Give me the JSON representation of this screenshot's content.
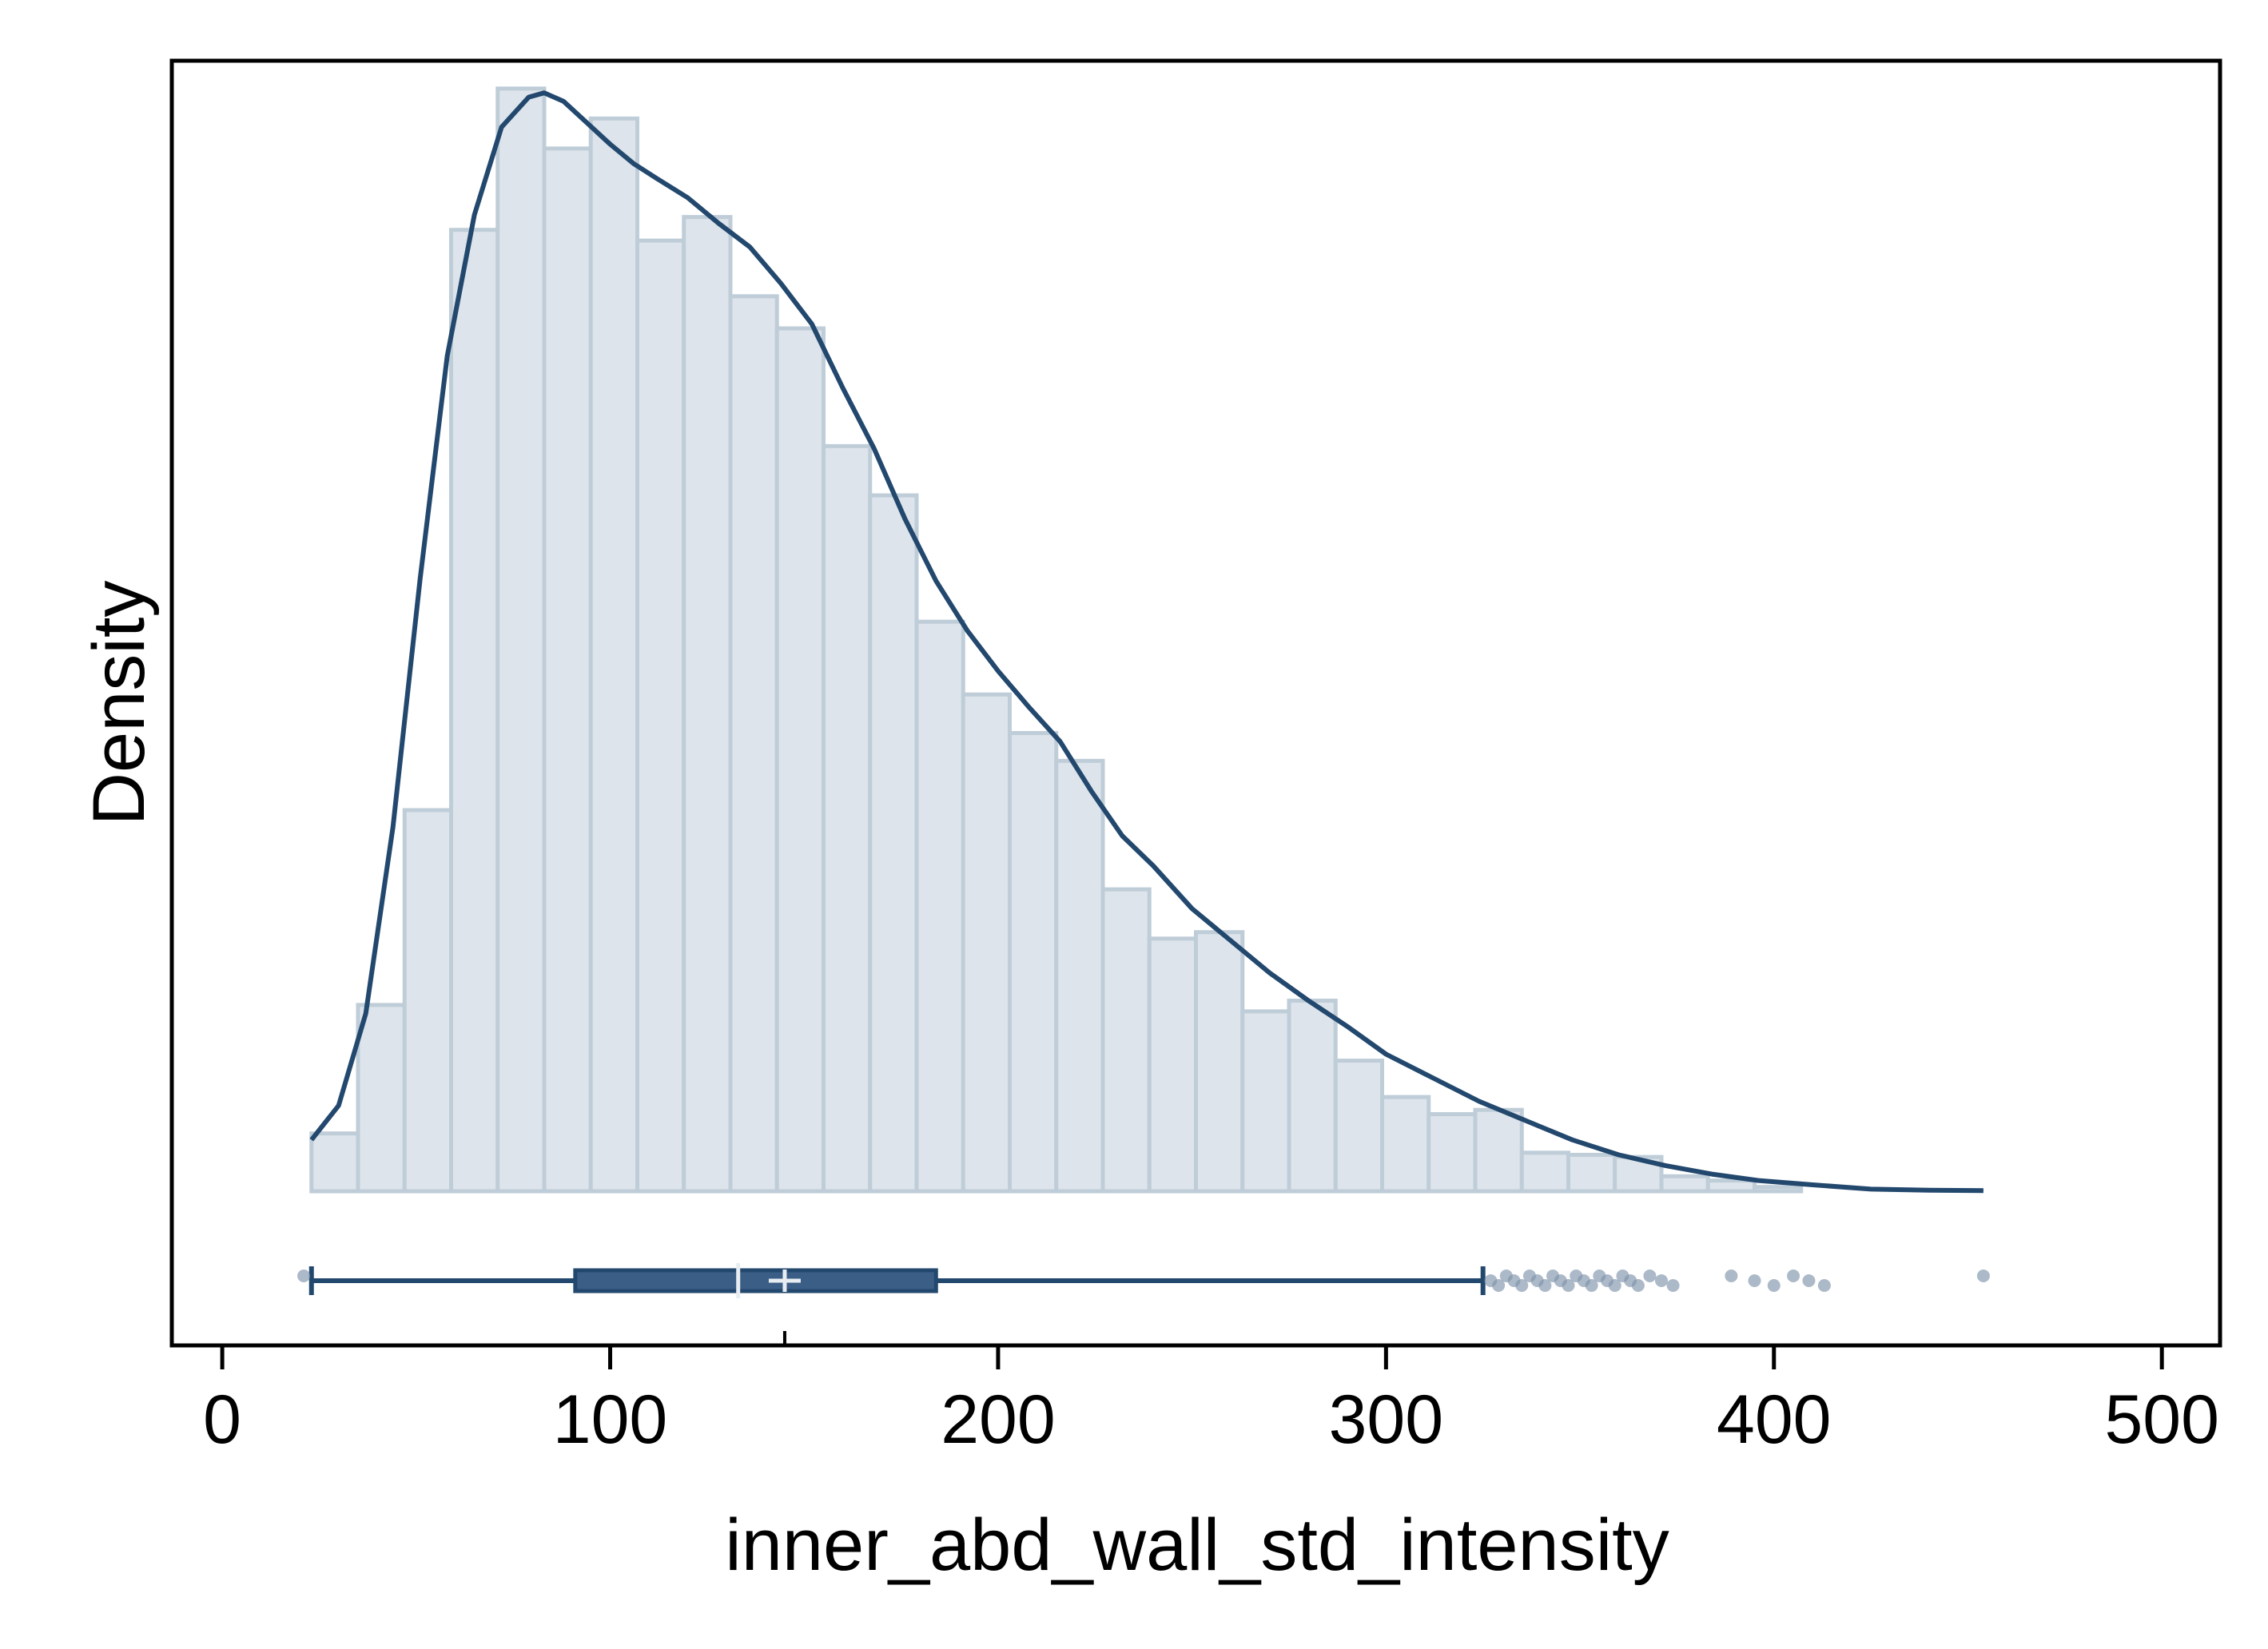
{
  "chart_data": {
    "type": "histogram",
    "xlabel": "inner_abd_wall_std_intensity",
    "ylabel": "Density",
    "xlim": [
      -13,
      515
    ],
    "ylim": [
      -0.00072,
      0.00528
    ],
    "x_ticks": [
      0,
      100,
      200,
      300,
      400,
      500
    ],
    "x_tick_labels": [
      "0",
      "100",
      "200",
      "300",
      "400",
      "500"
    ],
    "y_ticks": [],
    "grid": false,
    "legend": "none",
    "colors": {
      "bar_fill": "#dde4eb",
      "bar_stroke": "#bfcdd8",
      "kde_line": "#23486e",
      "box_fill": "#3b5e86",
      "outlier": "#7f94ab"
    },
    "histogram": {
      "bin_edges": [
        23,
        35,
        47,
        59,
        71,
        83,
        95,
        107,
        119,
        131,
        143,
        155,
        167,
        179,
        191,
        203,
        215,
        227,
        239,
        251,
        263,
        275,
        287,
        299,
        311,
        323,
        335,
        347,
        359,
        371,
        383,
        395,
        407
      ],
      "densities": [
        0.00027,
        0.00087,
        0.00178,
        0.00449,
        0.00515,
        0.00487,
        0.00501,
        0.00444,
        0.00455,
        0.00418,
        0.00403,
        0.00348,
        0.00325,
        0.00266,
        0.00232,
        0.00214,
        0.00201,
        0.00141,
        0.00118,
        0.00121,
        0.00084,
        0.00089,
        0.00061,
        0.00044,
        0.00036,
        0.00038,
        0.00018,
        0.00017,
        0.00016,
        7e-05,
        5e-05,
        2e-05
      ]
    },
    "kde": {
      "x": [
        23,
        30,
        37,
        44,
        51,
        58,
        65,
        72,
        79,
        83,
        88,
        94,
        100,
        106,
        112,
        120,
        128,
        136,
        144,
        152,
        160,
        168,
        176,
        184,
        192,
        200,
        208,
        216,
        224,
        232,
        240,
        250,
        260,
        270,
        280,
        290,
        300,
        312,
        324,
        336,
        348,
        360,
        372,
        384,
        396,
        410,
        425,
        440,
        454
      ],
      "y": [
        0.00024,
        0.0004,
        0.00083,
        0.0017,
        0.00286,
        0.0039,
        0.00456,
        0.00497,
        0.00511,
        0.00513,
        0.00509,
        0.00499,
        0.00489,
        0.0048,
        0.00473,
        0.00464,
        0.00452,
        0.00441,
        0.00424,
        0.00405,
        0.00375,
        0.00347,
        0.00314,
        0.00285,
        0.00262,
        0.00243,
        0.00226,
        0.0021,
        0.00187,
        0.00166,
        0.00152,
        0.00132,
        0.00117,
        0.00102,
        0.00089,
        0.00077,
        0.00064,
        0.00053,
        0.00042,
        0.00033,
        0.00024,
        0.00017,
        0.00012,
        8e-05,
        5e-05,
        3e-05,
        1e-05,
        5e-06,
        3e-06
      ]
    },
    "boxplot": {
      "whisker_low": 23,
      "q1": 91,
      "median": 133,
      "mean": 145,
      "q3": 184,
      "whisker_high": 325,
      "outliers": [
        21,
        327,
        329,
        331,
        333,
        335,
        337,
        339,
        341,
        343,
        345,
        347,
        349,
        351,
        353,
        355,
        357,
        359,
        361,
        363,
        365,
        368,
        371,
        374,
        389,
        395,
        400,
        405,
        409,
        413,
        454
      ]
    }
  }
}
